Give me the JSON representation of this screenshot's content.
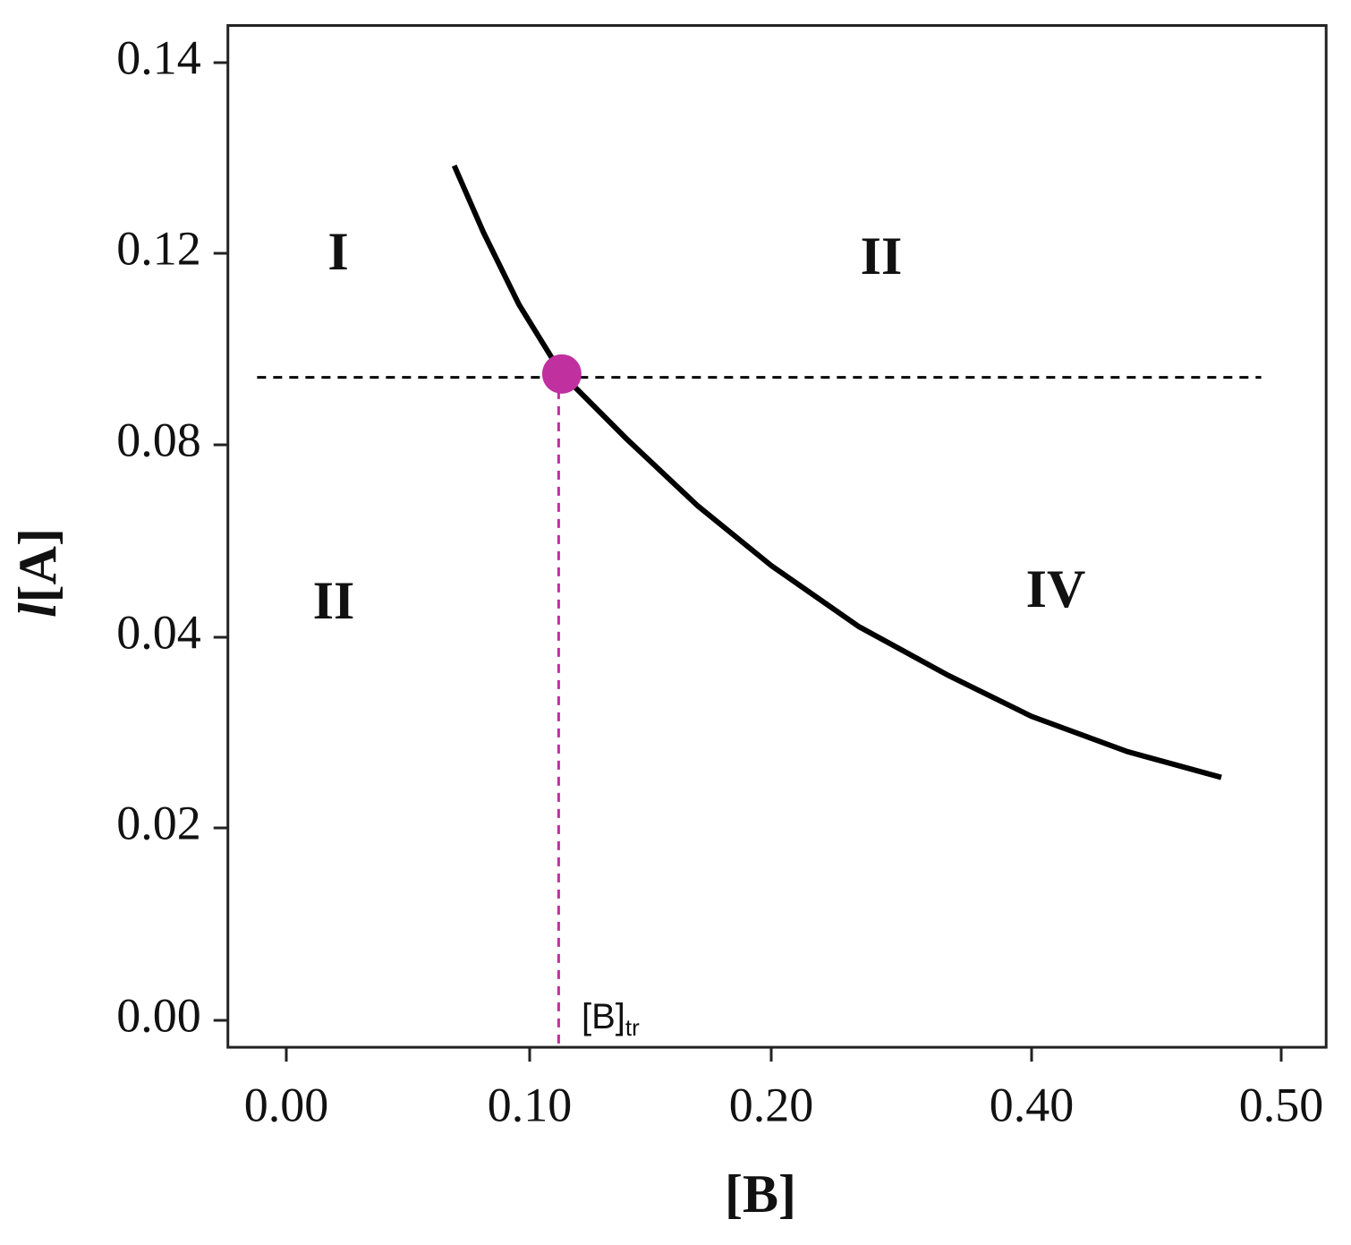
{
  "chart_data": {
    "type": "line",
    "xlabel": "[B]",
    "ylabel_italic": "l",
    "ylabel": "[A]",
    "xlim": [
      -0.024,
      0.518
    ],
    "ylim": [
      -0.0028,
      0.1439
    ],
    "xticks": [
      {
        "value": 0,
        "label": "0.00"
      },
      {
        "value": 0.1,
        "label": "0.10"
      },
      {
        "value": 0.2,
        "label": "0.20"
      },
      {
        "value": 0.4,
        "label": "0.40"
      },
      {
        "value": 0.5,
        "label": "0.50"
      }
    ],
    "yticks": [
      {
        "value": 0,
        "label": "0.00"
      },
      {
        "value": 0.02,
        "label": "0.02"
      },
      {
        "value": 0.04,
        "label": "0.04"
      },
      {
        "value": 0.08,
        "label": "0.08"
      },
      {
        "value": 0.12,
        "label": "0.12"
      },
      {
        "value": 0.14,
        "label": "0.14"
      }
    ],
    "series": [
      {
        "color": "#000000",
        "x": [
          0.069,
          0.081,
          0.0956,
          0.1133,
          0.14,
          0.1696,
          0.2,
          0.2674,
          0.336,
          0.4,
          0.4384,
          0.476
        ],
        "values": [
          0.1292,
          0.1222,
          0.1093,
          0.0948,
          0.0813,
          0.0673,
          0.0549,
          0.0422,
          0.036,
          0.0317,
          0.028,
          0.0253
        ]
      }
    ],
    "points": [
      {
        "x": 0.1133,
        "y": 0.0948,
        "color": "#c0309f"
      }
    ],
    "hlines": [
      {
        "y": 0.0941,
        "xmin": -0.012,
        "xmax": 0.492,
        "color": "#000000"
      }
    ],
    "vlines": [
      {
        "x": 0.112,
        "ymax": 0.0948,
        "color": "#c0309f"
      }
    ],
    "regions": [
      "I",
      "II",
      "II",
      "IV"
    ],
    "marker_label": "[B]",
    "marker_label_sub": "tr"
  }
}
